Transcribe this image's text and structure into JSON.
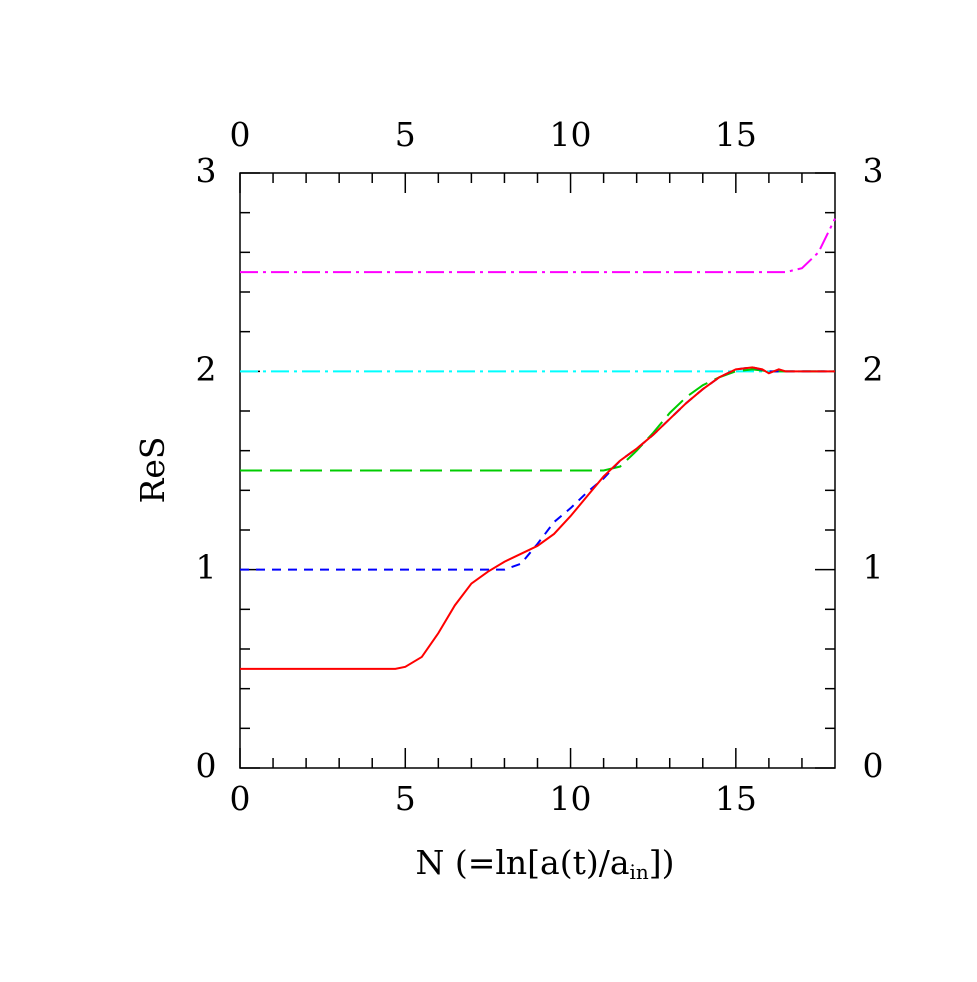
{
  "chart_data": {
    "type": "line",
    "xlabel": [
      "N (=ln[a(t)/a",
      "in",
      "])"
    ],
    "ylabel": "ReS",
    "xlim": [
      0,
      18
    ],
    "ylim": [
      0,
      3
    ],
    "xticks": [
      0,
      5,
      10,
      15
    ],
    "yticks": [
      0,
      1,
      2,
      3
    ],
    "xminorticks": [
      1,
      2,
      3,
      4,
      6,
      7,
      8,
      9,
      11,
      12,
      13,
      14,
      16,
      17
    ],
    "yminorticks": [
      0.2,
      0.4,
      0.6,
      0.8,
      1.2,
      1.4,
      1.6,
      1.8,
      2.2,
      2.4,
      2.6,
      2.8
    ],
    "series": [
      {
        "color": "#ff00ff",
        "style": "dashdot",
        "x": [
          0,
          16.5,
          17,
          17.5,
          18
        ],
        "values": [
          2.5,
          2.5,
          2.52,
          2.6,
          2.77
        ]
      },
      {
        "color": "#00ffff",
        "style": "dashdot",
        "x": [
          0,
          18
        ],
        "values": [
          2.0,
          2.0
        ]
      },
      {
        "color": "#00cc00",
        "style": "longdash",
        "x": [
          0,
          11,
          11.5,
          12,
          12.5,
          13,
          13.5,
          14,
          14.5,
          15,
          15.5,
          16,
          18
        ],
        "values": [
          1.5,
          1.5,
          1.52,
          1.6,
          1.69,
          1.79,
          1.87,
          1.93,
          1.97,
          2.0,
          2.01,
          2.0,
          2.0
        ]
      },
      {
        "color": "#0000ff",
        "style": "dashed",
        "x": [
          0,
          8,
          8.5,
          9,
          9.5,
          10,
          10.5,
          11,
          11.5,
          12,
          12.5,
          13,
          13.5,
          14,
          14.5,
          15,
          15.5,
          16,
          18
        ],
        "values": [
          1.0,
          1.0,
          1.03,
          1.13,
          1.24,
          1.31,
          1.39,
          1.46,
          1.55,
          1.61,
          1.68,
          1.76,
          1.84,
          1.91,
          1.97,
          2.01,
          2.02,
          2.0,
          2.0
        ]
      },
      {
        "color": "#ff0000",
        "style": "solid",
        "x": [
          0,
          4.7,
          5,
          5.5,
          6,
          6.5,
          7,
          7.5,
          8,
          8.5,
          9,
          9.5,
          10,
          10.5,
          11,
          11.5,
          12,
          12.5,
          13,
          13.5,
          14,
          14.5,
          15,
          15.5,
          15.8,
          16,
          16.3,
          16.5,
          18
        ],
        "values": [
          0.5,
          0.5,
          0.51,
          0.56,
          0.68,
          0.82,
          0.93,
          0.99,
          1.04,
          1.08,
          1.12,
          1.18,
          1.27,
          1.37,
          1.47,
          1.55,
          1.61,
          1.68,
          1.76,
          1.84,
          1.91,
          1.97,
          2.01,
          2.02,
          2.01,
          1.99,
          2.01,
          2.0,
          2.0
        ]
      }
    ]
  }
}
